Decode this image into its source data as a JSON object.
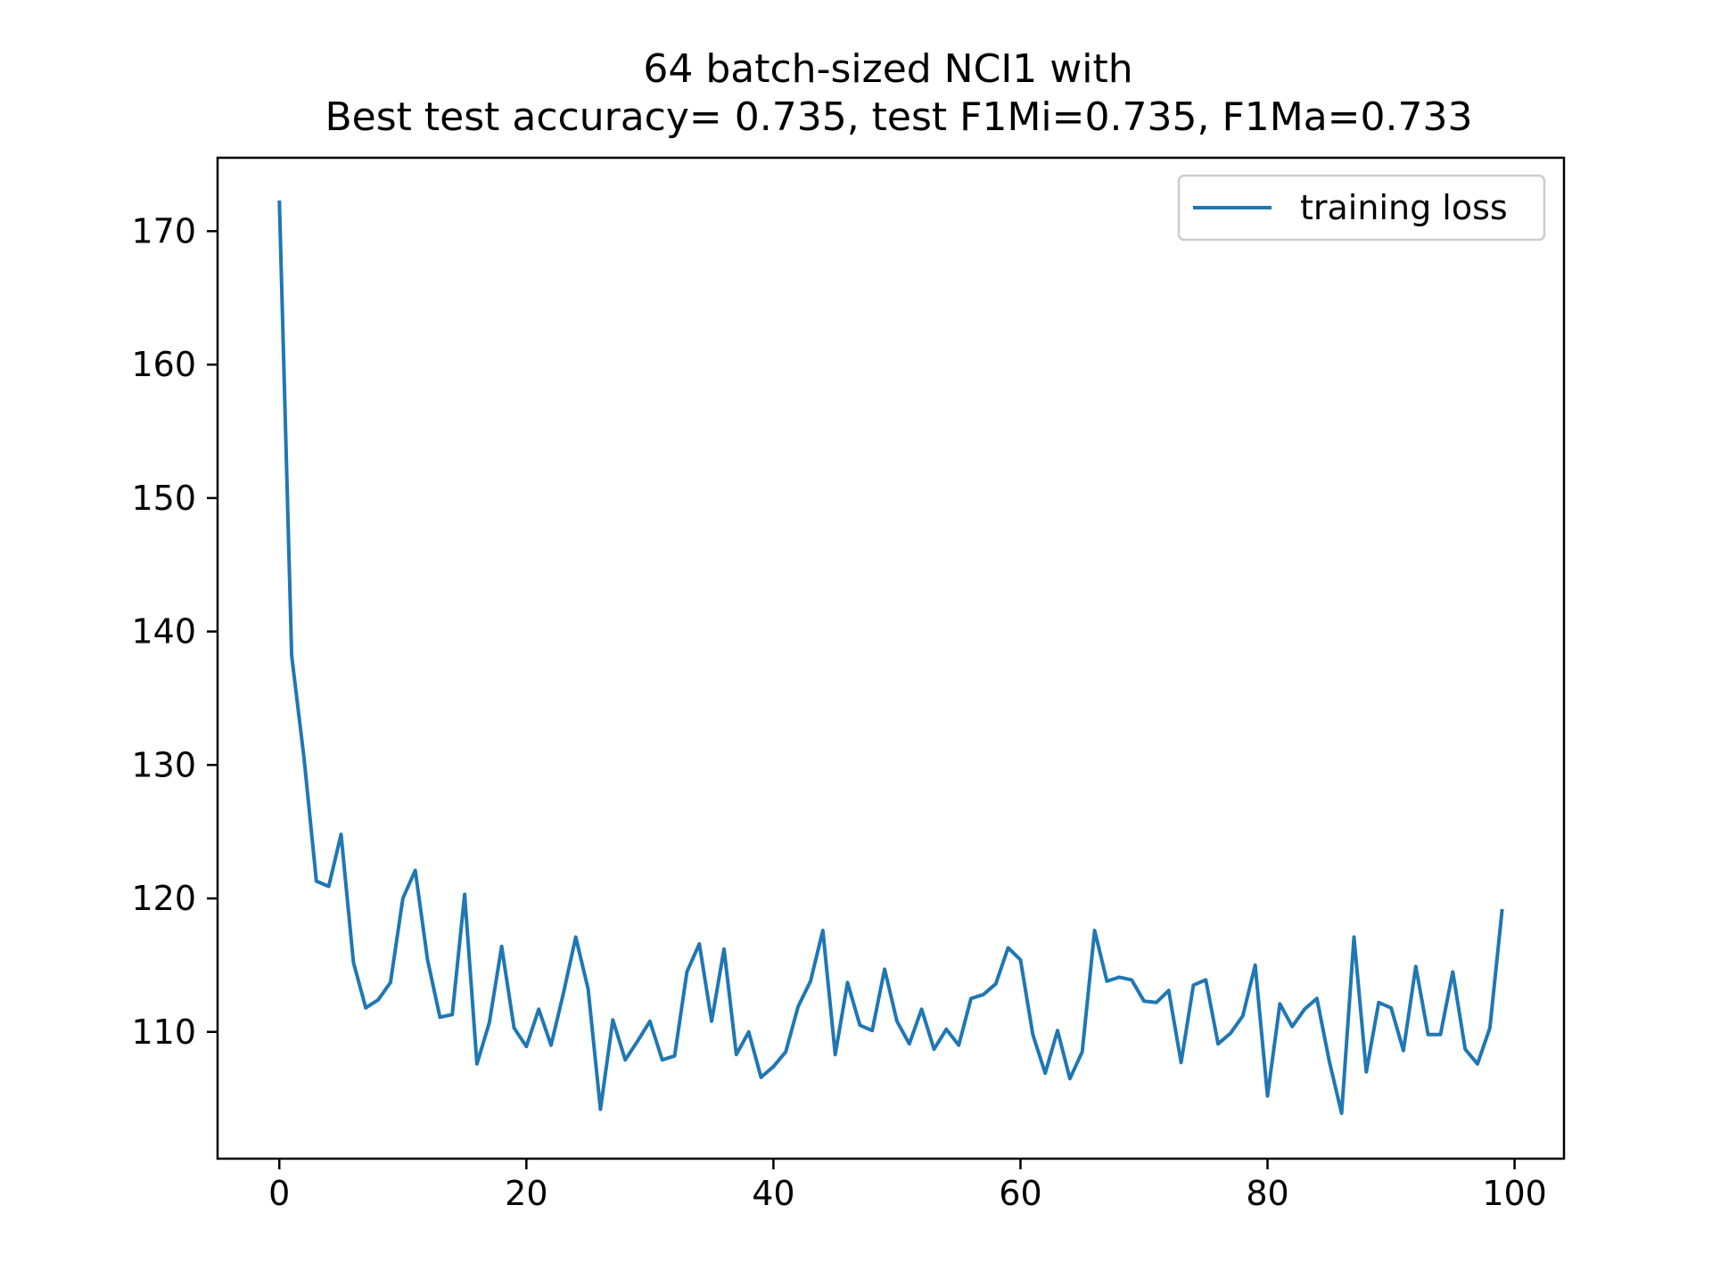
{
  "chart_data": {
    "type": "line",
    "title_line1": "64 batch-sized NCI1 with",
    "title_line2": "Best test accuracy= 0.735, test F1Mi=0.735, F1Ma=0.733",
    "xlabel": "",
    "ylabel": "",
    "xlim": [
      -5,
      104
    ],
    "ylim": [
      100.5,
      175.5
    ],
    "xticks": [
      0,
      20,
      40,
      60,
      80,
      100
    ],
    "yticks": [
      110,
      120,
      130,
      140,
      150,
      160,
      170
    ],
    "grid": false,
    "legend_position": "top-right",
    "series": [
      {
        "name": "training loss",
        "color": "#1f77b4",
        "x": [
          0,
          1,
          2,
          3,
          4,
          5,
          6,
          7,
          8,
          9,
          10,
          11,
          12,
          13,
          14,
          15,
          16,
          17,
          18,
          19,
          20,
          21,
          22,
          23,
          24,
          25,
          26,
          27,
          28,
          29,
          30,
          31,
          32,
          33,
          34,
          35,
          36,
          37,
          38,
          39,
          40,
          41,
          42,
          43,
          44,
          45,
          46,
          47,
          48,
          49,
          50,
          51,
          52,
          53,
          54,
          55,
          56,
          57,
          58,
          59,
          60,
          61,
          62,
          63,
          64,
          65,
          66,
          67,
          68,
          69,
          70,
          71,
          72,
          73,
          74,
          75,
          76,
          77,
          78,
          79,
          80,
          81,
          82,
          83,
          84,
          85,
          86,
          87,
          88,
          89,
          90,
          91,
          92,
          93,
          94,
          95,
          96,
          97,
          98,
          99
        ],
        "values": [
          172.3,
          138.2,
          130.5,
          121.3,
          120.9,
          124.8,
          115.2,
          111.8,
          112.4,
          113.7,
          120.0,
          122.1,
          115.4,
          111.1,
          111.3,
          120.3,
          107.6,
          110.7,
          116.4,
          110.3,
          108.9,
          111.7,
          109.0,
          112.9,
          117.1,
          113.2,
          104.2,
          110.9,
          107.9,
          109.3,
          110.8,
          107.9,
          108.2,
          114.5,
          116.6,
          110.8,
          116.2,
          108.3,
          110.0,
          106.6,
          107.4,
          108.5,
          111.9,
          113.8,
          117.6,
          108.3,
          113.7,
          110.5,
          110.1,
          114.7,
          110.8,
          109.1,
          111.7,
          108.7,
          110.2,
          109.0,
          112.5,
          112.8,
          113.6,
          116.3,
          115.4,
          109.8,
          106.9,
          110.1,
          106.5,
          108.5,
          117.6,
          113.8,
          114.1,
          113.9,
          112.3,
          112.2,
          113.1,
          107.7,
          113.5,
          113.9,
          109.1,
          109.9,
          111.2,
          115.0,
          105.2,
          112.1,
          110.4,
          111.7,
          112.5,
          107.8,
          103.9,
          117.1,
          107.0,
          112.2,
          111.8,
          108.6,
          114.9,
          109.8,
          109.8,
          114.5,
          108.7,
          107.6,
          110.3,
          119.2
        ]
      }
    ]
  }
}
